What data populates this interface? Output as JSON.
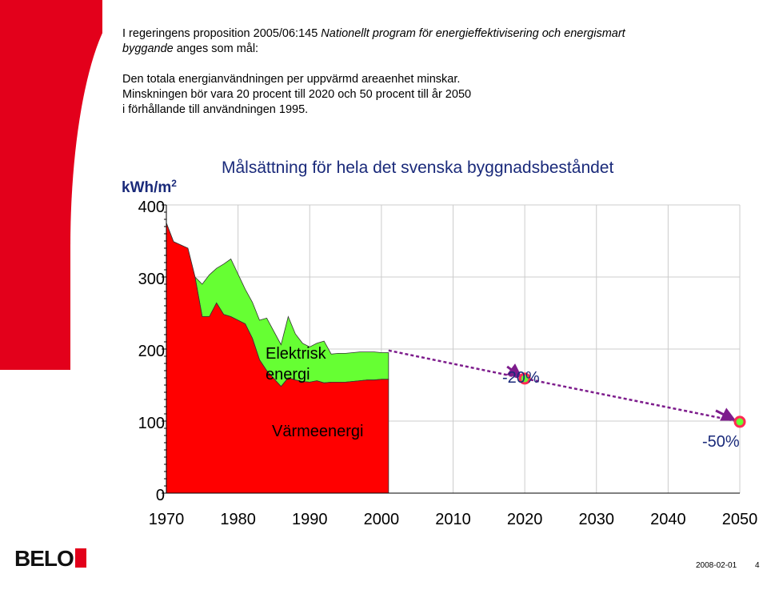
{
  "intro": {
    "line1_pre": "I regeringens proposition 2005/06:145 ",
    "line1_italic": "Nationellt program för energieffektivisering och energismart",
    "line2_italic": "byggande",
    "line2_post": " anges som mål:",
    "goal1": "Den totala energianvändningen per uppvärmd areaenhet minskar.",
    "goal2": "Minskningen bör vara 20 procent till 2020 och 50 procent till år 2050",
    "goal3": "i förhållande till användningen 1995."
  },
  "chart_data": {
    "type": "area",
    "title": "Målsättning för hela det svenska byggnadsbeståndet",
    "ylabel_main": "kWh/m",
    "ylabel_sup": "2",
    "ylim": [
      0,
      400
    ],
    "xlim": [
      1970,
      2050
    ],
    "yticks": [
      "0",
      "100",
      "200",
      "300",
      "400"
    ],
    "xticks": [
      "1970",
      "1980",
      "1990",
      "2000",
      "2010",
      "2020",
      "2030",
      "2040",
      "2050"
    ],
    "grid": true,
    "series": [
      {
        "name": "Värmeenergi",
        "color": "#ff0000",
        "x": [
          1970,
          1971,
          1973,
          1974,
          1975,
          1976,
          1977,
          1978,
          1979,
          1981,
          1982,
          1983,
          1984,
          1986,
          1987,
          1988,
          1989,
          1990,
          1991,
          1992,
          1993,
          1994,
          1995,
          1996,
          1997,
          1998,
          1999,
          2000,
          2001
        ],
        "values": [
          375,
          349,
          340,
          300,
          245,
          245,
          264,
          248,
          245,
          235,
          215,
          185,
          170,
          148,
          160,
          157,
          155,
          154,
          156,
          153,
          154,
          154,
          154,
          155,
          156,
          157,
          157,
          158,
          158
        ]
      },
      {
        "name": "Elektrisk energi",
        "color": "#66ff33",
        "x": [
          1970,
          1971,
          1973,
          1974,
          1975,
          1976,
          1977,
          1978,
          1979,
          1981,
          1982,
          1983,
          1984,
          1986,
          1987,
          1988,
          1989,
          1990,
          1991,
          1992,
          1993,
          1994,
          1995,
          1996,
          1997,
          1998,
          1999,
          2000,
          2001
        ],
        "values": [
          0,
          0,
          0,
          0,
          45,
          58,
          48,
          70,
          80,
          48,
          50,
          55,
          73,
          58,
          85,
          64,
          53,
          49,
          52,
          58,
          39,
          40,
          40,
          40,
          40,
          39,
          39,
          37,
          37
        ]
      }
    ],
    "targets": {
      "start": [
        2001,
        198
      ],
      "point_2020": [
        2020,
        159
      ],
      "point_2050": [
        2050,
        99
      ],
      "label_2020": "-20%",
      "label_2050": "-50%"
    },
    "series_labels": {
      "electric_line1": "Elektrisk",
      "electric_line2": "energi",
      "heat": "Värmeenergi"
    }
  },
  "footer": {
    "date": "2008-02-01",
    "page": "4",
    "logo": "BELO"
  },
  "colors": {
    "red": "#ff0000",
    "green": "#66ff33",
    "arrow": "#7d1c8c",
    "label": "#1a2a7a"
  }
}
